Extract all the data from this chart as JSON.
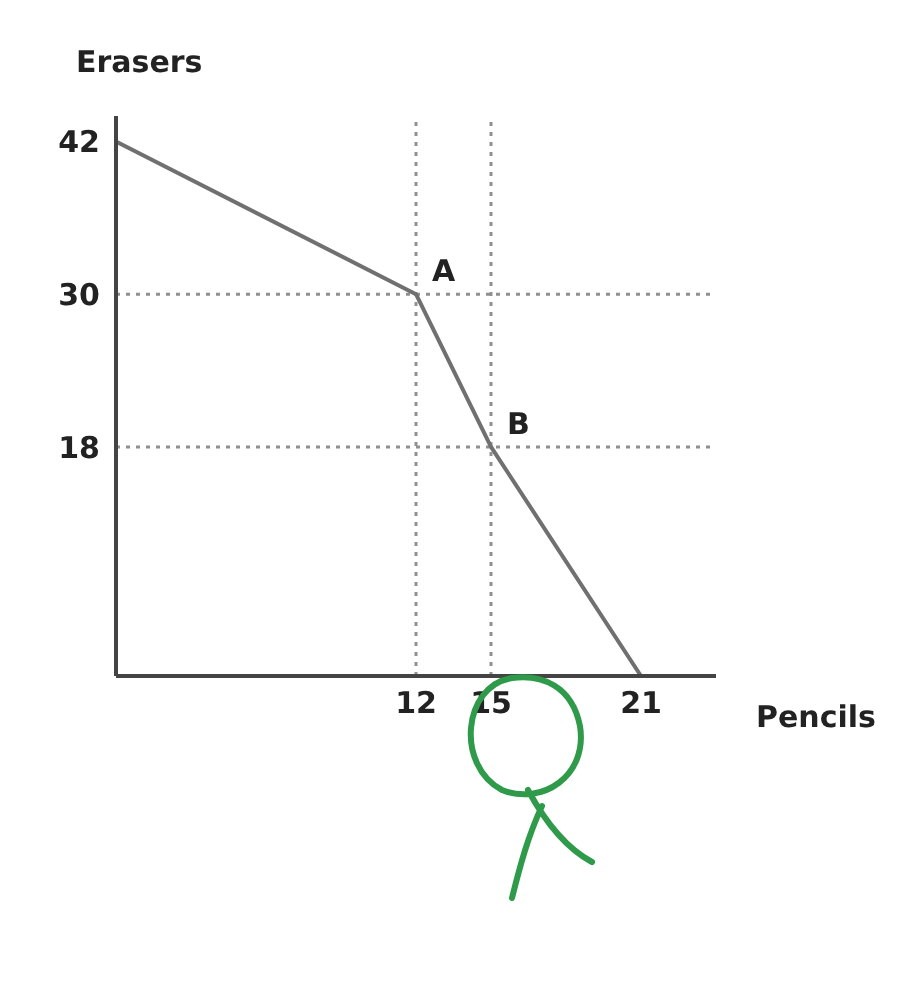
{
  "chart_data": {
    "type": "line",
    "xlabel": "Pencils",
    "ylabel": "Erasers",
    "x": [
      0,
      12,
      15,
      21
    ],
    "series": [
      {
        "color": "#707070",
        "values": [
          42,
          30,
          18,
          0
        ]
      }
    ],
    "xlim": [
      0,
      24
    ],
    "ylim": [
      0,
      44
    ],
    "xticks": [
      12,
      15,
      21
    ],
    "yticks": [
      18,
      30,
      42
    ],
    "ref_lines": [
      {
        "axis": "x",
        "value": 12,
        "line_style": "dotted",
        "color": "#909090"
      },
      {
        "axis": "y",
        "value": 30,
        "line_style": "dotted",
        "color": "#909090"
      },
      {
        "axis": "x",
        "value": 15,
        "line_style": "dotted",
        "color": "#909090"
      },
      {
        "axis": "y",
        "value": 18,
        "line_style": "dotted",
        "color": "#909090"
      }
    ],
    "annotations": [
      {
        "text": "A",
        "x": 12,
        "y": 30
      },
      {
        "text": "B",
        "x": 15,
        "y": 18
      }
    ],
    "marker": "none",
    "grid": false,
    "legend": false
  }
}
